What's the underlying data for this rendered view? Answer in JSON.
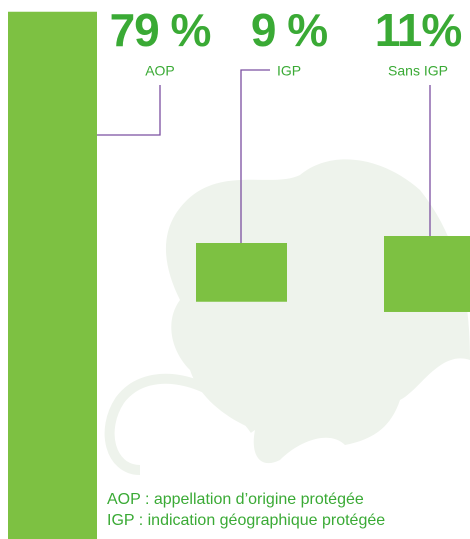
{
  "chart_data": {
    "type": "bar",
    "categories": [
      "AOP",
      "IGP",
      "Sans IGP"
    ],
    "values": [
      79,
      9,
      11
    ],
    "value_labels": [
      "79 %",
      "9 %",
      "11%"
    ],
    "color": "#7dc142",
    "notes": [
      "AOP : appellation d’origine protégée",
      "IGP : indication géographique protégée"
    ]
  }
}
